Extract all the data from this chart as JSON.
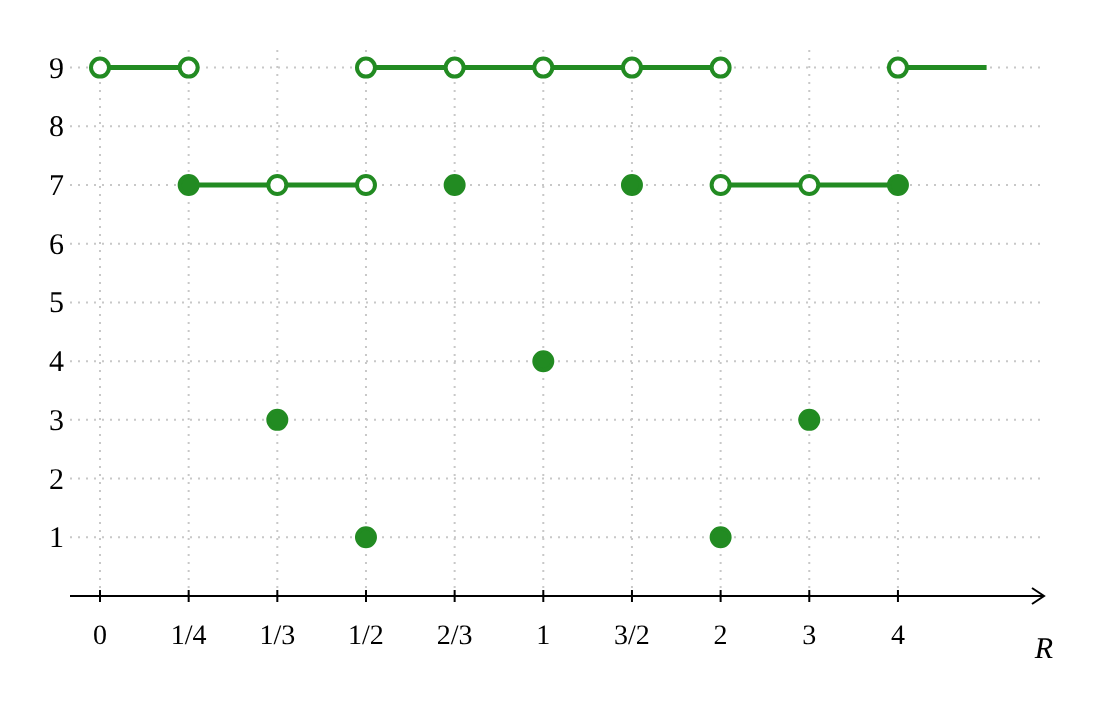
{
  "chart_data": {
    "type": "line",
    "xlabel": "R",
    "categories": [
      "0",
      "1/4",
      "1/3",
      "1/2",
      "2/3",
      "1",
      "3/2",
      "2",
      "3",
      "4",
      null
    ],
    "ylim": [
      0,
      9.3
    ],
    "yticks": [
      1,
      2,
      3,
      4,
      5,
      6,
      7,
      8,
      9
    ],
    "grid": true,
    "line_style": "solid",
    "series": [
      {
        "color": "#228b22",
        "values": [
          9,
          9,
          null,
          9,
          9,
          9,
          9,
          9,
          null,
          9,
          9
        ]
      },
      {
        "color": "#228b22",
        "values": [
          null,
          7,
          7,
          7,
          null,
          null,
          null,
          7,
          7,
          7,
          null
        ]
      },
      {
        "type": "scatter",
        "color": "#228b22",
        "marker": "circle",
        "values": [
          null,
          7,
          3,
          1,
          7,
          4,
          7,
          1,
          3,
          7,
          null
        ]
      },
      {
        "type": "scatter",
        "color": "#ffffff",
        "marker": "circle",
        "values": [
          9,
          9,
          null,
          9,
          9,
          9,
          9,
          9,
          null,
          9,
          null
        ]
      },
      {
        "type": "scatter",
        "color": "#ffffff",
        "marker": "circle",
        "values": [
          null,
          null,
          7,
          7,
          null,
          null,
          null,
          7,
          7,
          null,
          null
        ]
      }
    ]
  }
}
